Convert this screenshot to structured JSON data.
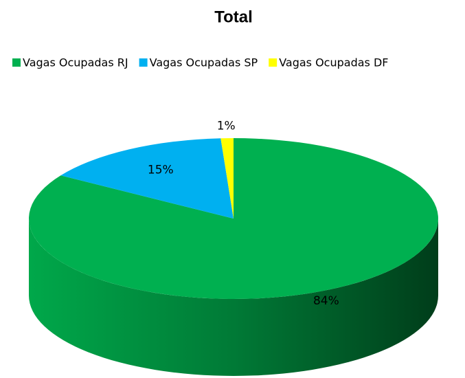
{
  "chart_data": {
    "type": "pie",
    "title": "Total",
    "categories": [
      "Vagas Ocupadas RJ",
      "Vagas Ocupadas SP",
      "Vagas Ocupadas DF"
    ],
    "values": [
      84,
      15,
      1
    ],
    "value_labels": [
      "84%",
      "15%",
      "1%"
    ],
    "colors": [
      "#00b050",
      "#00b0f0",
      "#ffff00"
    ],
    "legend": "top"
  }
}
